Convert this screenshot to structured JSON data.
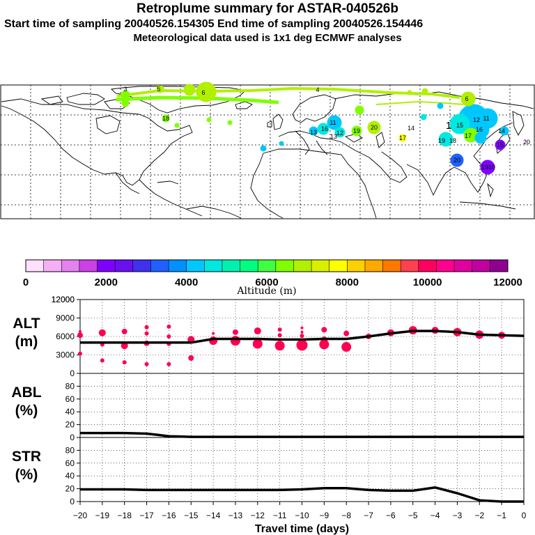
{
  "header": {
    "title": "Retroplume summary for ASTAR-040526b",
    "sampling": "Start time of sampling 20040526.154305     End time of sampling 20040526.154446",
    "met": "Meteorological data used is 1x1 deg ECMWF analyses"
  },
  "colorbar": {
    "label": "Altitude (m)",
    "ticks": [
      "0",
      "2000",
      "4000",
      "6000",
      "8000",
      "10000",
      "12000"
    ],
    "colors": [
      "#ffe0ff",
      "#f5b0f5",
      "#e580f0",
      "#cc40e8",
      "#8000ff",
      "#6a10f0",
      "#4030f0",
      "#2060ff",
      "#0090ff",
      "#00c8ff",
      "#00e8e0",
      "#00f0b0",
      "#00ff80",
      "#40ff40",
      "#80ff00",
      "#b0f000",
      "#d8f000",
      "#ffff00",
      "#ffd000",
      "#ffa800",
      "#ff7800",
      "#ff4050",
      "#ff0060",
      "#ff0090",
      "#e000a0",
      "#c000a0",
      "#900090"
    ]
  },
  "map_labels": [
    {
      "t": "3",
      "c": "#b0f000"
    },
    {
      "t": "5",
      "c": "#b0f000"
    },
    {
      "t": "6",
      "c": "#b0f000"
    },
    {
      "t": "4",
      "c": "#b0f000"
    },
    {
      "t": "6",
      "c": "#b0f000"
    },
    {
      "t": "11",
      "c": "#00c8ff"
    },
    {
      "t": "16",
      "c": "#00e8e0"
    },
    {
      "t": "12",
      "c": "#00c8ff"
    },
    {
      "t": "13",
      "c": "#00e8e0"
    },
    {
      "t": "19",
      "c": "#80ff00"
    },
    {
      "t": "20",
      "c": "#b0f000"
    },
    {
      "t": "17",
      "c": "#ffff00"
    },
    {
      "t": "18",
      "c": "#00c8ff"
    },
    {
      "t": "19",
      "c": "#00c8ff"
    },
    {
      "t": "1",
      "c": "#00c8ff"
    },
    {
      "t": "15",
      "c": "#00c8ff"
    },
    {
      "t": "11",
      "c": "#00c8ff"
    },
    {
      "t": "12",
      "c": "#00c8ff"
    },
    {
      "t": "14",
      "c": "#00c8ff"
    },
    {
      "t": "16",
      "c": "#00c8ff"
    },
    {
      "t": "20",
      "c": "#2060ff"
    },
    {
      "t": "19",
      "c": "#8000ff"
    },
    {
      "t": "10",
      "c": "#8000ff"
    },
    {
      "t": "15",
      "c": "#8000ff"
    },
    {
      "t": "17",
      "c": "#b0f000"
    },
    {
      "t": "13",
      "c": "#00e8e0"
    },
    {
      "t": "18",
      "c": "#00e8e0"
    },
    {
      "t": "14",
      "c": "#b0f000"
    },
    {
      "t": "20",
      "c": "#00e8e0"
    }
  ],
  "chart_data": [
    {
      "type": "line",
      "panel": "ALT",
      "ylabel": [
        "ALT",
        "(m)"
      ],
      "ylim": [
        0,
        12000
      ],
      "yticks": [
        0,
        3000,
        6000,
        9000,
        12000
      ],
      "line_x": [
        -20,
        -19,
        -18,
        -17,
        -16,
        -15,
        -14,
        -13,
        -12,
        -11,
        -10,
        -9,
        -8,
        -7,
        -6,
        -5,
        -4,
        -3,
        -2,
        -1,
        0
      ],
      "line_y": [
        5000,
        5000,
        5000,
        5000,
        5000,
        5000,
        5600,
        5600,
        5600,
        5500,
        5500,
        5600,
        5600,
        6000,
        6500,
        6900,
        6900,
        6700,
        6300,
        6200,
        6100
      ],
      "points": [
        {
          "x": -20,
          "y": 6200,
          "s": 4
        },
        {
          "x": -20,
          "y": 3200,
          "s": 3
        },
        {
          "x": -20,
          "y": 6800,
          "s": 2
        },
        {
          "x": -19,
          "y": 6600,
          "s": 5
        },
        {
          "x": -19,
          "y": 2100,
          "s": 3
        },
        {
          "x": -19,
          "y": 4700,
          "s": 3
        },
        {
          "x": -18,
          "y": 6800,
          "s": 4
        },
        {
          "x": -18,
          "y": 4500,
          "s": 5
        },
        {
          "x": -18,
          "y": 1800,
          "s": 3
        },
        {
          "x": -17,
          "y": 7500,
          "s": 3
        },
        {
          "x": -17,
          "y": 6500,
          "s": 3
        },
        {
          "x": -17,
          "y": 4900,
          "s": 4
        },
        {
          "x": -17,
          "y": 1500,
          "s": 3
        },
        {
          "x": -16,
          "y": 7600,
          "s": 3
        },
        {
          "x": -16,
          "y": 6000,
          "s": 3
        },
        {
          "x": -16,
          "y": 4800,
          "s": 3
        },
        {
          "x": -16,
          "y": 1500,
          "s": 3
        },
        {
          "x": -15,
          "y": 5500,
          "s": 5
        },
        {
          "x": -15,
          "y": 2500,
          "s": 4
        },
        {
          "x": -14,
          "y": 6500,
          "s": 2
        },
        {
          "x": -14,
          "y": 5300,
          "s": 6
        },
        {
          "x": -13,
          "y": 6700,
          "s": 4
        },
        {
          "x": -13,
          "y": 5300,
          "s": 7
        },
        {
          "x": -12,
          "y": 6900,
          "s": 5
        },
        {
          "x": -12,
          "y": 4800,
          "s": 7
        },
        {
          "x": -11,
          "y": 7100,
          "s": 3
        },
        {
          "x": -11,
          "y": 6200,
          "s": 3
        },
        {
          "x": -11,
          "y": 4500,
          "s": 7
        },
        {
          "x": -10,
          "y": 7400,
          "s": 2
        },
        {
          "x": -10,
          "y": 6700,
          "s": 2
        },
        {
          "x": -10,
          "y": 6100,
          "s": 3
        },
        {
          "x": -10,
          "y": 4600,
          "s": 8
        },
        {
          "x": -9,
          "y": 7100,
          "s": 4
        },
        {
          "x": -9,
          "y": 5400,
          "s": 5
        },
        {
          "x": -9,
          "y": 4700,
          "s": 7
        },
        {
          "x": -8,
          "y": 6500,
          "s": 4
        },
        {
          "x": -8,
          "y": 4300,
          "s": 7
        },
        {
          "x": -7,
          "y": 6000,
          "s": 4
        },
        {
          "x": -6,
          "y": 6600,
          "s": 5
        },
        {
          "x": -5,
          "y": 7000,
          "s": 6
        },
        {
          "x": -4,
          "y": 7000,
          "s": 5
        },
        {
          "x": -3,
          "y": 6700,
          "s": 6
        },
        {
          "x": -2,
          "y": 6300,
          "s": 6
        },
        {
          "x": -1,
          "y": 6200,
          "s": 5
        }
      ]
    },
    {
      "type": "line",
      "panel": "ABL",
      "ylabel": [
        "ABL",
        "(%)"
      ],
      "ylim": [
        0,
        100
      ],
      "yticks": [
        0,
        20,
        40,
        60,
        80
      ],
      "x": [
        -20,
        -19,
        -18,
        -17,
        -16.5,
        -16,
        -15,
        -14,
        -13,
        -12,
        -11,
        -10,
        -9,
        -8,
        -7,
        -6,
        -5,
        -4,
        -3,
        -2,
        -1,
        0
      ],
      "y": [
        7,
        7,
        7,
        6,
        4,
        2,
        1,
        1,
        1,
        1,
        1,
        1,
        1,
        1,
        1,
        1,
        1,
        1,
        1,
        1,
        1,
        1
      ]
    },
    {
      "type": "line",
      "panel": "STR",
      "ylabel": [
        "STR",
        "(%)"
      ],
      "ylim": [
        0,
        100
      ],
      "yticks": [
        0,
        20,
        40,
        60,
        80
      ],
      "xlabel": "Travel time (days)",
      "xticks": [
        -20,
        -19,
        -18,
        -17,
        -16,
        -15,
        -14,
        -13,
        -12,
        -11,
        -10,
        -9,
        -8,
        -7,
        -6,
        -5,
        -4,
        -3,
        -2,
        -1,
        0
      ],
      "x": [
        -20,
        -19,
        -18,
        -17,
        -16,
        -15,
        -14,
        -13,
        -12,
        -11,
        -10,
        -9,
        -8,
        -7,
        -6,
        -5,
        -4,
        -3,
        -2,
        -1,
        0
      ],
      "y": [
        19,
        19,
        19,
        18,
        18,
        18,
        18,
        18,
        18,
        18,
        19,
        21,
        21,
        18,
        17,
        17,
        22,
        13,
        2,
        0,
        0
      ]
    }
  ]
}
